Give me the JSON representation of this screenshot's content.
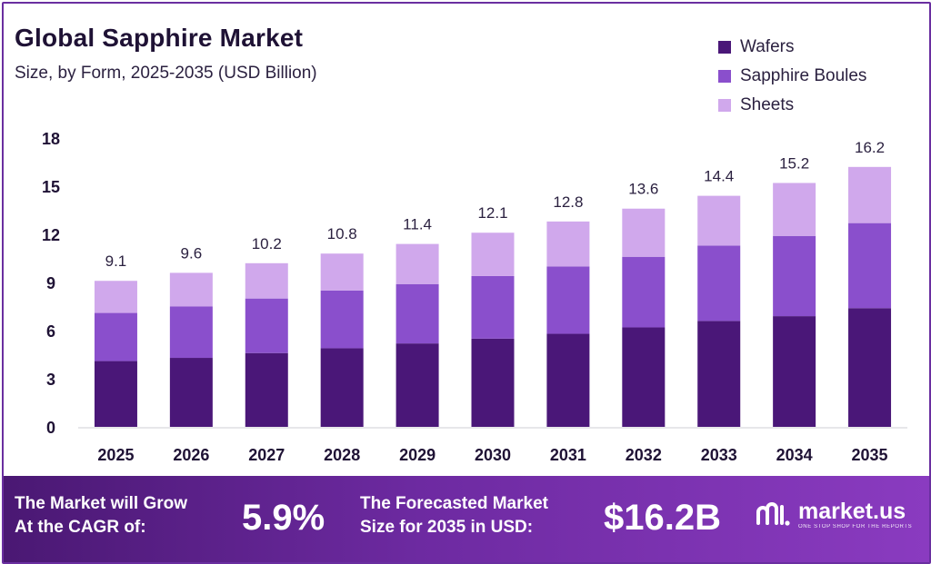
{
  "chart_data": {
    "type": "bar",
    "stacked": true,
    "title": "Global Sapphire Market",
    "subtitle": "Size, by Form, 2025-2035 (USD Billion)",
    "xlabel": "",
    "ylabel": "",
    "ylim": [
      0,
      18
    ],
    "yticks": [
      0,
      3,
      6,
      9,
      12,
      15,
      18
    ],
    "categories": [
      "2025",
      "2026",
      "2027",
      "2028",
      "2029",
      "2030",
      "2031",
      "2032",
      "2033",
      "2034",
      "2035"
    ],
    "series": [
      {
        "name": "Wafers",
        "color": "#4a1778",
        "values": [
          4.1,
          4.3,
          4.6,
          4.9,
          5.2,
          5.5,
          5.8,
          6.2,
          6.6,
          6.9,
          7.4
        ]
      },
      {
        "name": "Sapphire Boules",
        "color": "#8a4fcc",
        "values": [
          3.0,
          3.2,
          3.4,
          3.6,
          3.7,
          3.9,
          4.2,
          4.4,
          4.7,
          5.0,
          5.3
        ]
      },
      {
        "name": "Sheets",
        "color": "#d0a8ec",
        "values": [
          2.0,
          2.1,
          2.2,
          2.3,
          2.5,
          2.7,
          2.8,
          3.0,
          3.1,
          3.3,
          3.5
        ]
      }
    ],
    "totals": [
      "9.1",
      "9.6",
      "10.2",
      "10.8",
      "11.4",
      "12.1",
      "12.8",
      "13.6",
      "14.4",
      "15.2",
      "16.2"
    ],
    "legend_position": "top-right",
    "grid": false
  },
  "footer": {
    "cagr_label_line1": "The Market will Grow",
    "cagr_label_line2": "At the CAGR of:",
    "cagr_value": "5.9%",
    "forecast_label_line1": "The Forecasted Market",
    "forecast_label_line2": "Size for 2035 in USD:",
    "forecast_value": "$16.2B",
    "brand_name": "market.us",
    "brand_tagline": "ONE STOP SHOP FOR THE REPORTS"
  },
  "colors": {
    "accent": "#6a2fa0",
    "text": "#1f1235"
  }
}
